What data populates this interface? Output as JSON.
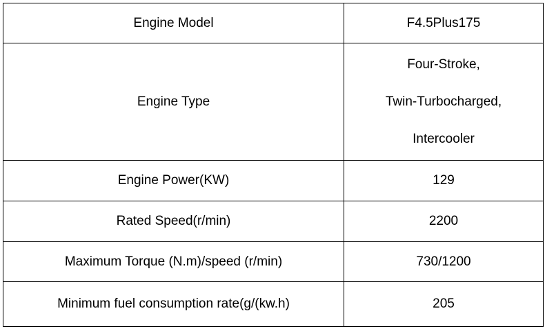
{
  "table": {
    "rows": [
      [
        "Engine Model",
        "F4.5Plus175"
      ],
      [
        "Engine Type",
        [
          "Four-Stroke,",
          "Twin-Turbocharged,",
          "Intercooler"
        ]
      ],
      [
        "Engine Power(KW)",
        "129"
      ],
      [
        "Rated Speed(r/min)",
        "2200"
      ],
      [
        "Maximum Torque (N.m)/speed (r/min)",
        "730/1200"
      ],
      [
        "Minimum fuel consumption rate(g/(kw.h)",
        "205"
      ]
    ]
  }
}
